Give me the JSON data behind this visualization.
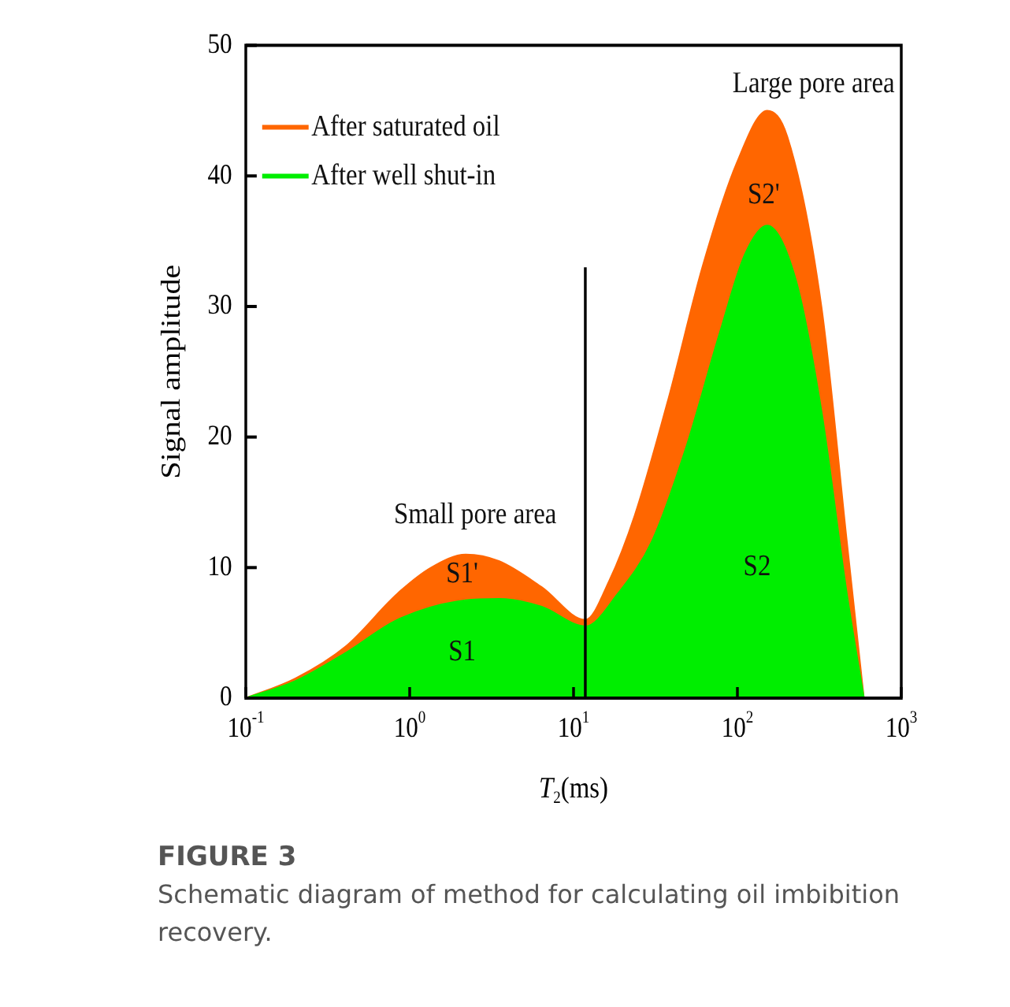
{
  "chart_data": {
    "type": "area",
    "xlabel": "T$_{2}$(ms)",
    "ylabel": "Signal amplitude",
    "log": "x",
    "xlim": [
      0.1,
      1000
    ],
    "xticks": [
      {
        "value": 0.1,
        "label": "10$^{-1}$"
      },
      {
        "value": 1,
        "label": "10$^{0}$"
      },
      {
        "value": 10,
        "label": "10$^{1}$"
      },
      {
        "value": 100,
        "label": "10$^{2}$"
      },
      {
        "value": 1000,
        "label": "10$^{3}$"
      }
    ],
    "ylim": [
      0,
      50
    ],
    "yticks": [
      0,
      10,
      20,
      30,
      40,
      50
    ],
    "grid": false,
    "legend": "top left",
    "series": [
      {
        "name": "After saturated oil",
        "color": "#ff6600",
        "type": "area",
        "x": [
          0.1,
          0.2,
          0.41,
          0.84,
          1.35,
          2.2,
          3.5,
          6.4,
          11.8,
          16.5,
          23.6,
          38,
          61,
          99,
          152,
          202,
          326,
          466,
          592
        ],
        "values": [
          0,
          1.5,
          4,
          8,
          10,
          11,
          10.5,
          8.5,
          6,
          9,
          14,
          23,
          33,
          41,
          45,
          43,
          30,
          12,
          0
        ]
      },
      {
        "name": "After well shut-in",
        "color": "#00ee00",
        "type": "area",
        "x": [
          0.1,
          0.2,
          0.41,
          0.84,
          2.2,
          3.5,
          6.4,
          11.8,
          18.6,
          30,
          48,
          78,
          111,
          152,
          228,
          326,
          466,
          592
        ],
        "values": [
          0,
          1.3,
          3.5,
          6,
          7.5,
          7.6,
          7,
          5.5,
          8,
          12,
          19,
          28,
          34,
          36.2,
          32,
          22,
          8,
          0
        ]
      },
      {
        "color": "#000000",
        "type": "line",
        "x": [
          11.8,
          11.8
        ],
        "values": [
          0,
          33
        ]
      }
    ],
    "annotations": [
      "Small pore area",
      "Large pore area",
      "S1'",
      "S1",
      "S2'",
      "S2",
      "FIGURE 3",
      "Schematic diagram of method for calculating oil imbibition recovery."
    ]
  }
}
